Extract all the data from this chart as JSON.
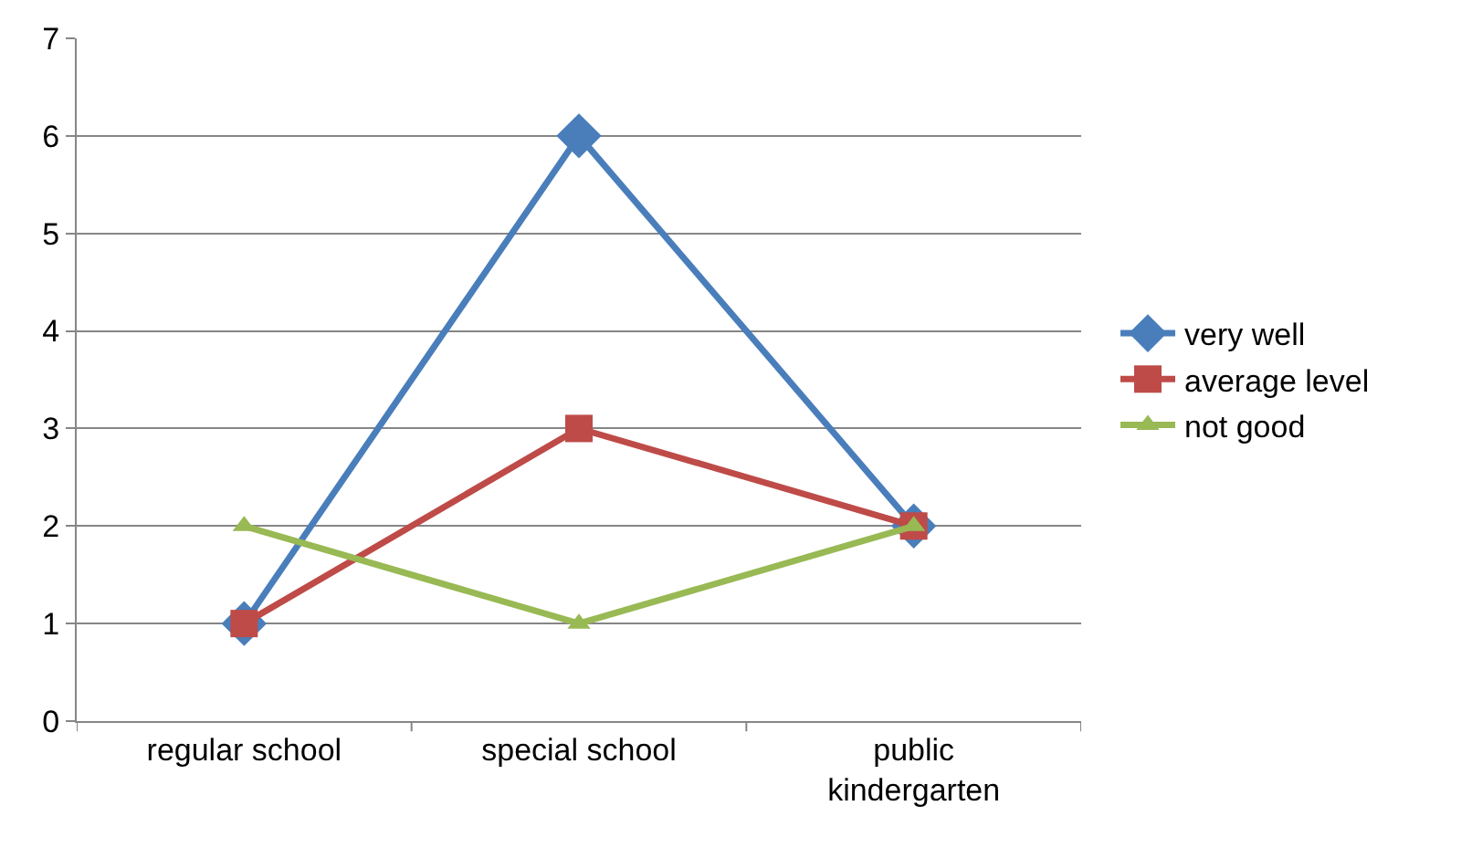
{
  "chart_data": {
    "type": "line",
    "categories": [
      "regular school",
      "special school",
      "public kindergarten"
    ],
    "series": [
      {
        "name": "very well",
        "color": "#4a7ebb",
        "values": [
          1,
          6,
          2
        ],
        "marker": "diamond"
      },
      {
        "name": "average level",
        "color": "#be4b48",
        "values": [
          1,
          3,
          2
        ],
        "marker": "square"
      },
      {
        "name": "not good",
        "color": "#98b954",
        "values": [
          2,
          1,
          2
        ],
        "marker": "triangle"
      }
    ],
    "ylim": [
      0,
      7
    ],
    "yticks": [
      0,
      1,
      2,
      3,
      4,
      5,
      6,
      7
    ],
    "grid": "y",
    "legend": "right",
    "line_style": "solid"
  }
}
